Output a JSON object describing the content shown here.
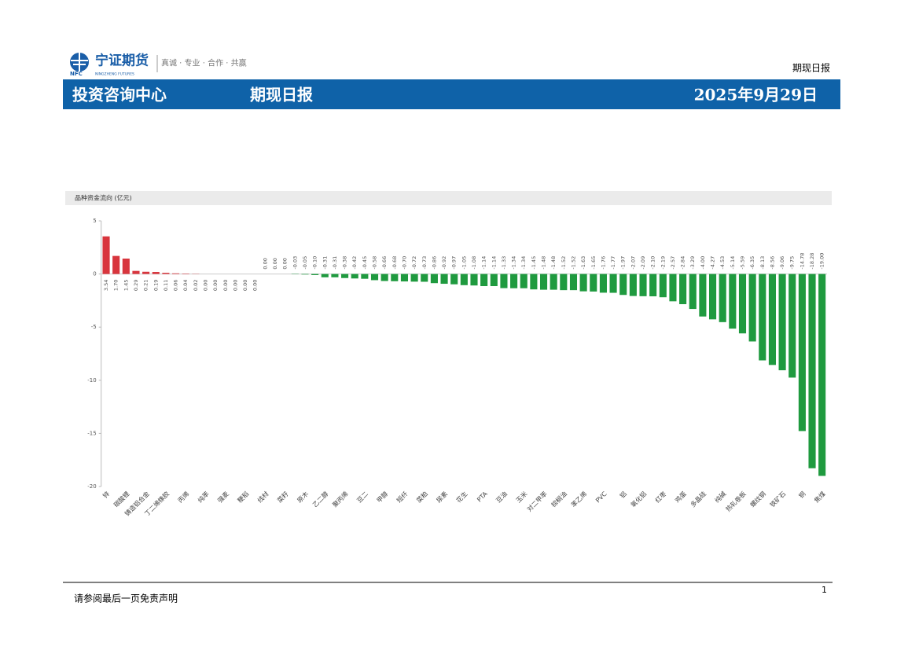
{
  "header": {
    "logo": "宁证期货",
    "logo_en": "NFC",
    "logo_sub": "NINGZHENG FUTURES",
    "slogan": "真诚 · 专业 · 合作 · 共赢",
    "report_name": "期现日报",
    "department": "投资咨询中心",
    "title": "期现日报",
    "date": "2025年9月29日"
  },
  "chart_data": {
    "type": "bar",
    "title": "品种资金流向 (亿元)",
    "categories": [
      "锌",
      null,
      "碳酸锂",
      null,
      "铸造铝合金",
      null,
      "丁二烯橡胶",
      null,
      "丙烯",
      null,
      "纯苯",
      null,
      "强麦",
      null,
      "粳稻",
      null,
      "线材",
      null,
      "菜籽",
      null,
      "原木",
      null,
      "乙二醇",
      null,
      "聚丙烯",
      null,
      "豆二",
      null,
      "甲醇",
      null,
      "短纤",
      null,
      "菜粕",
      null,
      "尿素",
      null,
      "花生",
      null,
      "PTA",
      null,
      "豆油",
      null,
      "玉米",
      null,
      "对二甲苯",
      null,
      "棕榈油",
      null,
      "苯乙烯",
      null,
      "PVC",
      null,
      "铝",
      null,
      "氧化铝",
      null,
      "红枣",
      null,
      "鸡蛋",
      null,
      "多晶硅",
      null,
      "纯碱",
      null,
      "热轧卷板",
      null,
      "螺纹钢",
      null,
      "铁矿石",
      null,
      "铜",
      null,
      "焦煤"
    ],
    "values": [
      3.54,
      1.7,
      1.45,
      0.29,
      0.21,
      0.19,
      0.11,
      0.06,
      0.04,
      0.02,
      0,
      0,
      0,
      0,
      0,
      0,
      0,
      0,
      0,
      -0.03,
      -0.05,
      -0.1,
      -0.31,
      -0.31,
      -0.38,
      -0.42,
      -0.45,
      -0.58,
      -0.66,
      -0.68,
      -0.7,
      -0.72,
      -0.73,
      -0.86,
      -0.92,
      -0.97,
      -1.05,
      -1.08,
      -1.14,
      -1.14,
      -1.33,
      -1.34,
      -1.34,
      -1.45,
      -1.48,
      -1.48,
      -1.52,
      -1.52,
      -1.63,
      -1.65,
      -1.76,
      -1.77,
      -1.97,
      -2.07,
      -2.09,
      -2.1,
      -2.19,
      -2.57,
      -2.84,
      -3.29,
      -4.0,
      -4.27,
      -4.53,
      -5.14,
      -5.59,
      -6.35,
      -8.13,
      -8.56,
      -9.06,
      -9.75,
      -14.78,
      -18.28,
      -19.0
    ],
    "value_labels": [
      "3.54",
      "1.70",
      "1.45",
      "0.29",
      "0.21",
      "0.19",
      "0.11",
      "0.06",
      "0.04",
      "0.02",
      "0.00",
      "0.00",
      "0.00",
      "0.00",
      "0.00",
      "0.00",
      "0.00",
      "0.00",
      "0.00",
      "-0.03",
      "-0.05",
      "-0.10",
      "-0.31",
      "-0.31",
      "-0.38",
      "-0.42",
      "-0.45",
      "-0.58",
      "-0.66",
      "-0.68",
      "-0.70",
      "-0.72",
      "-0.73",
      "-0.86",
      "-0.92",
      "-0.97",
      "-1.05",
      "-1.08",
      "-1.14",
      "-1.14",
      "-1.33",
      "-1.34",
      "-1.34",
      "-1.45",
      "-1.48",
      "-1.48",
      "-1.52",
      "-1.52",
      "-1.63",
      "-1.65",
      "-1.76",
      "-1.77",
      "-1.97",
      "-2.07",
      "-2.09",
      "-2.10",
      "-2.19",
      "-2.57",
      "-2.84",
      "-3.29",
      "-4.00",
      "-4.27",
      "-4.53",
      "-5.14",
      "-5.59",
      "-6.35",
      "-8.13",
      "-8.56",
      "-9.06",
      "-9.75",
      "-14.78",
      "-18.28",
      "-19.00"
    ],
    "positive_color": "#d8353d",
    "negative_color": "#1f9a3f",
    "ylim": [
      -20,
      5
    ],
    "yticks": [
      5,
      0,
      -5,
      -10,
      -15,
      -20
    ],
    "grid": false
  },
  "footer": {
    "disclaimer": "请参阅最后一页免责声明",
    "page": "1"
  }
}
